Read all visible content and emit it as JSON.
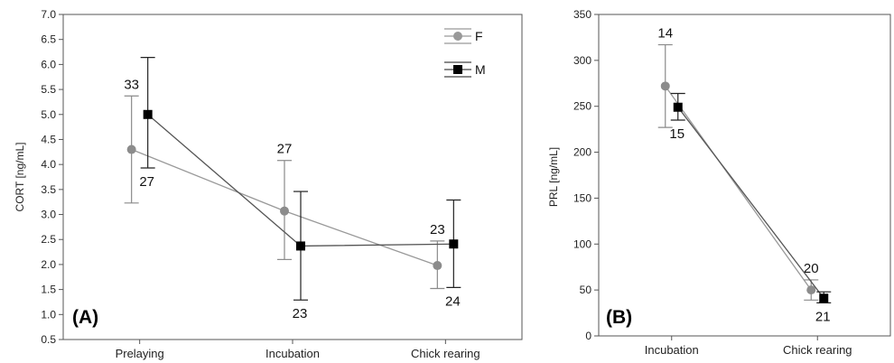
{
  "chart_data": [
    {
      "type": "line",
      "panel_label": "(A)",
      "ylabel": "CORT [ng/mL]",
      "ylim": [
        0.5,
        7.0
      ],
      "y_ticks": [
        "0.5",
        "1.0",
        "1.5",
        "2.0",
        "2.5",
        "3.0",
        "3.5",
        "4.0",
        "4.5",
        "5.0",
        "5.5",
        "6.0",
        "6.5",
        "7.0"
      ],
      "categories": [
        "Prelaying",
        "Incubation",
        "Chick rearing"
      ],
      "legend_position": "top-right",
      "series": [
        {
          "name": "F",
          "color": "#999999",
          "marker": "circle",
          "values": [
            4.3,
            3.07,
            1.98
          ],
          "err_low": [
            3.23,
            2.1,
            1.52
          ],
          "err_high": [
            5.37,
            4.08,
            2.47
          ],
          "n_labels": [
            "33",
            "27",
            "23"
          ],
          "n_label_pos": [
            "above",
            "above",
            "above"
          ]
        },
        {
          "name": "M",
          "color": "#555555",
          "marker": "square",
          "values": [
            5.0,
            2.37,
            2.41
          ],
          "err_low": [
            3.93,
            1.29,
            1.54
          ],
          "err_high": [
            6.14,
            3.46,
            3.29
          ],
          "n_labels": [
            "27",
            "23",
            "24"
          ],
          "n_label_pos": [
            "below",
            "below",
            "below"
          ]
        }
      ]
    },
    {
      "type": "line",
      "panel_label": "(B)",
      "ylabel": "PRL [ng/mL]",
      "ylim": [
        0,
        350
      ],
      "y_ticks": [
        "0",
        "50",
        "100",
        "150",
        "200",
        "250",
        "300",
        "350"
      ],
      "categories": [
        "Incubation",
        "Chick rearing"
      ],
      "series": [
        {
          "name": "F",
          "color": "#999999",
          "marker": "circle",
          "values": [
            272,
            50
          ],
          "err_low": [
            227,
            39
          ],
          "err_high": [
            317,
            61
          ],
          "n_labels": [
            "14",
            "20"
          ],
          "n_label_pos": [
            "above",
            "above"
          ]
        },
        {
          "name": "M",
          "color": "#555555",
          "marker": "square",
          "values": [
            249,
            41
          ],
          "err_low": [
            235,
            36
          ],
          "err_high": [
            264,
            48
          ],
          "n_labels": [
            "15",
            "21"
          ],
          "n_label_pos": [
            "below",
            "below"
          ]
        }
      ]
    }
  ]
}
